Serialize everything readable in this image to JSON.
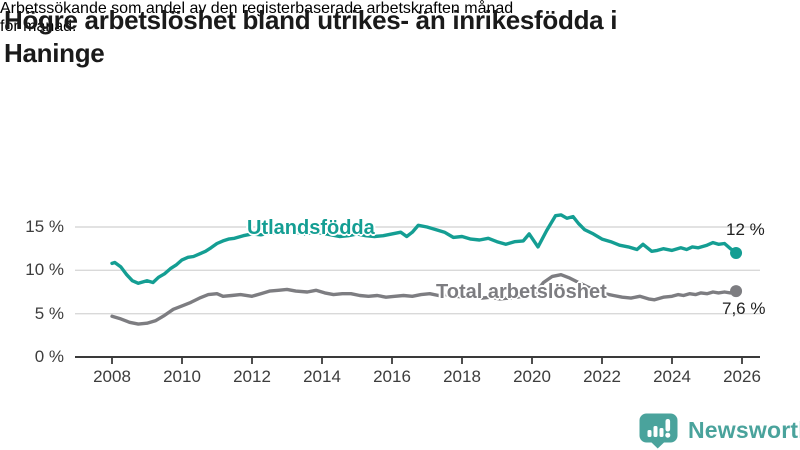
{
  "header": {
    "title": "Högre arbetslöshet bland utrikes- än inrikesfödda i Haninge",
    "title_lines": [
      "Högre arbetslöshet bland utrikes- än inrikesfödda i",
      "Haninge"
    ],
    "subtitle": "Arbetssökande som andel av den registerbaserade arbetskraften månad för månad.",
    "subtitle_lines": [
      "Arbetssökande som andel av den registerbaserade arbetskraften månad",
      "för månad."
    ]
  },
  "footer": {
    "brand": "Newsworthy"
  },
  "colors": {
    "series_teal": "#149e93",
    "series_gray": "#7d7d81",
    "grid": "#d9d9d9",
    "axis": "#3a3a3a",
    "text_dark": "#1a1a1a",
    "tick_text": "#3d3d3d",
    "logo_teal": "#4aa39c"
  },
  "chart_data": {
    "type": "line",
    "title": "Högre arbetslöshet bland utrikes- än inrikesfödda i Haninge",
    "subtitle": "Arbetssökande som andel av den registerbaserade arbetskraften månad för månad.",
    "xlabel": "",
    "ylabel": "",
    "x_range": [
      2008,
      2026
    ],
    "ylim": [
      0,
      16.5
    ],
    "grid": "horizontal",
    "legend_position": "inline-labels",
    "x_ticks": [
      {
        "value": 2008,
        "label": "2008"
      },
      {
        "value": 2010,
        "label": "2010"
      },
      {
        "value": 2012,
        "label": "2012"
      },
      {
        "value": 2014,
        "label": "2014"
      },
      {
        "value": 2016,
        "label": "2016"
      },
      {
        "value": 2018,
        "label": "2018"
      },
      {
        "value": 2020,
        "label": "2020"
      },
      {
        "value": 2022,
        "label": "2022"
      },
      {
        "value": 2024,
        "label": "2024"
      },
      {
        "value": 2026,
        "label": "2026"
      }
    ],
    "y_ticks": [
      {
        "value": 0,
        "label": "0 %"
      },
      {
        "value": 5,
        "label": "5 %"
      },
      {
        "value": 10,
        "label": "10 %"
      },
      {
        "value": 15,
        "label": "15 %"
      }
    ],
    "series": [
      {
        "name": "Utlandsfödda",
        "color": "#149e93",
        "end_label": "12 %",
        "end_value": 12.0,
        "x": [
          2008.0,
          2008.08,
          2008.25,
          2008.42,
          2008.58,
          2008.75,
          2009.0,
          2009.17,
          2009.33,
          2009.5,
          2009.67,
          2009.83,
          2010.0,
          2010.17,
          2010.33,
          2010.5,
          2010.67,
          2010.83,
          2011.0,
          2011.17,
          2011.33,
          2011.5,
          2011.75,
          2012.0,
          2012.25,
          2012.5,
          2012.75,
          2013.0,
          2013.25,
          2013.5,
          2013.75,
          2014.0,
          2014.25,
          2014.5,
          2014.75,
          2015.0,
          2015.25,
          2015.5,
          2015.75,
          2016.0,
          2016.25,
          2016.42,
          2016.58,
          2016.75,
          2017.0,
          2017.25,
          2017.5,
          2017.75,
          2018.0,
          2018.25,
          2018.5,
          2018.75,
          2019.0,
          2019.25,
          2019.5,
          2019.75,
          2019.92,
          2020.17,
          2020.42,
          2020.67,
          2020.83,
          2021.0,
          2021.17,
          2021.33,
          2021.5,
          2021.75,
          2022.0,
          2022.25,
          2022.5,
          2022.75,
          2023.0,
          2023.17,
          2023.42,
          2023.58,
          2023.75,
          2024.0,
          2024.25,
          2024.42,
          2024.58,
          2024.75,
          2025.0,
          2025.17,
          2025.33,
          2025.5,
          2025.67,
          2025.83
        ],
        "values": [
          10.8,
          10.9,
          10.4,
          9.5,
          8.8,
          8.5,
          8.8,
          8.6,
          9.2,
          9.6,
          10.2,
          10.6,
          11.2,
          11.5,
          11.6,
          11.9,
          12.2,
          12.6,
          13.1,
          13.4,
          13.6,
          13.7,
          14.0,
          14.2,
          14.1,
          14.3,
          14.4,
          14.5,
          14.4,
          14.2,
          14.4,
          14.3,
          14.1,
          13.9,
          14.0,
          14.2,
          14.0,
          13.9,
          14.0,
          14.2,
          14.4,
          13.9,
          14.4,
          15.2,
          15.0,
          14.7,
          14.4,
          13.8,
          13.9,
          13.6,
          13.5,
          13.7,
          13.3,
          13.0,
          13.3,
          13.4,
          14.2,
          12.7,
          14.6,
          16.3,
          16.4,
          16.0,
          16.2,
          15.4,
          14.7,
          14.2,
          13.6,
          13.3,
          12.9,
          12.7,
          12.4,
          13.0,
          12.2,
          12.3,
          12.5,
          12.3,
          12.6,
          12.4,
          12.7,
          12.6,
          12.9,
          13.2,
          13.0,
          13.1,
          12.5,
          12.0
        ]
      },
      {
        "name": "Total arbetslöshet",
        "color": "#7d7d81",
        "end_label": "7,6 %",
        "end_value": 7.6,
        "x": [
          2008.0,
          2008.25,
          2008.5,
          2008.75,
          2009.0,
          2009.25,
          2009.5,
          2009.75,
          2010.0,
          2010.25,
          2010.5,
          2010.75,
          2011.0,
          2011.17,
          2011.42,
          2011.67,
          2012.0,
          2012.25,
          2012.5,
          2012.75,
          2013.0,
          2013.25,
          2013.58,
          2013.83,
          2014.08,
          2014.33,
          2014.58,
          2014.83,
          2015.08,
          2015.33,
          2015.58,
          2015.83,
          2016.08,
          2016.33,
          2016.58,
          2016.83,
          2017.08,
          2017.33,
          2017.58,
          2017.83,
          2018.08,
          2018.33,
          2018.58,
          2018.83,
          2019.08,
          2019.33,
          2019.58,
          2019.83,
          2020.08,
          2020.33,
          2020.58,
          2020.83,
          2021.08,
          2021.33,
          2021.58,
          2021.83,
          2022.08,
          2022.33,
          2022.58,
          2022.83,
          2023.08,
          2023.33,
          2023.5,
          2023.75,
          2024.0,
          2024.17,
          2024.33,
          2024.5,
          2024.67,
          2024.83,
          2025.0,
          2025.17,
          2025.33,
          2025.5,
          2025.67,
          2025.83
        ],
        "values": [
          4.7,
          4.4,
          4.0,
          3.8,
          3.9,
          4.2,
          4.8,
          5.5,
          5.9,
          6.3,
          6.8,
          7.2,
          7.3,
          7.0,
          7.1,
          7.2,
          7.0,
          7.3,
          7.6,
          7.7,
          7.8,
          7.6,
          7.5,
          7.7,
          7.4,
          7.2,
          7.3,
          7.3,
          7.1,
          7.0,
          7.1,
          6.9,
          7.0,
          7.1,
          7.0,
          7.2,
          7.3,
          7.1,
          7.2,
          7.0,
          6.9,
          7.0,
          6.8,
          6.9,
          6.7,
          6.8,
          6.9,
          7.1,
          7.3,
          8.6,
          9.3,
          9.5,
          9.1,
          8.6,
          8.1,
          7.7,
          7.3,
          7.1,
          6.9,
          6.8,
          7.0,
          6.7,
          6.6,
          6.9,
          7.0,
          7.2,
          7.1,
          7.3,
          7.2,
          7.4,
          7.3,
          7.5,
          7.4,
          7.5,
          7.4,
          7.6
        ]
      }
    ]
  }
}
